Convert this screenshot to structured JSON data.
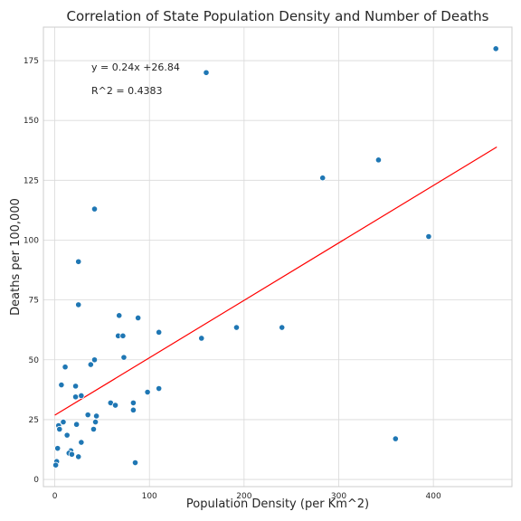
{
  "chart_data": {
    "type": "scatter",
    "title": "Correlation of State Population Density and Number of Deaths",
    "xlabel": "Population Density (per Km^2)",
    "ylabel": "Deaths per 100,000",
    "xlim": [
      -12,
      483
    ],
    "ylim": [
      -3,
      189
    ],
    "xticks": [
      0,
      100,
      200,
      300,
      400
    ],
    "yticks": [
      0,
      25,
      50,
      75,
      100,
      125,
      150,
      175
    ],
    "grid": true,
    "annotations": [
      "y = 0.24x +26.84",
      "R^2 = 0.4383"
    ],
    "regression": {
      "slope": 0.24,
      "intercept": 26.84,
      "x_range": [
        0,
        467
      ]
    },
    "colors": {
      "points": "#1f77b4",
      "point_edge": "#ffffff",
      "regression_line": "#ff0000",
      "grid": "#d9d9d9",
      "frame": "#cccccc"
    },
    "points": [
      {
        "x": 466,
        "y": 180
      },
      {
        "x": 160,
        "y": 170
      },
      {
        "x": 342,
        "y": 133.5
      },
      {
        "x": 283,
        "y": 126
      },
      {
        "x": 42,
        "y": 113
      },
      {
        "x": 395,
        "y": 101.5
      },
      {
        "x": 25,
        "y": 91
      },
      {
        "x": 25,
        "y": 73
      },
      {
        "x": 68,
        "y": 68.5
      },
      {
        "x": 88,
        "y": 67.5
      },
      {
        "x": 192,
        "y": 63.5
      },
      {
        "x": 240,
        "y": 63.5
      },
      {
        "x": 110,
        "y": 61.5
      },
      {
        "x": 67,
        "y": 60
      },
      {
        "x": 72,
        "y": 60
      },
      {
        "x": 155,
        "y": 59
      },
      {
        "x": 73,
        "y": 51
      },
      {
        "x": 42,
        "y": 50
      },
      {
        "x": 38,
        "y": 48
      },
      {
        "x": 11,
        "y": 47
      },
      {
        "x": 7,
        "y": 39.5
      },
      {
        "x": 22,
        "y": 39
      },
      {
        "x": 110,
        "y": 38
      },
      {
        "x": 98,
        "y": 36.5
      },
      {
        "x": 28,
        "y": 35
      },
      {
        "x": 22,
        "y": 34.5
      },
      {
        "x": 59,
        "y": 32
      },
      {
        "x": 83,
        "y": 32
      },
      {
        "x": 64,
        "y": 31
      },
      {
        "x": 83,
        "y": 29
      },
      {
        "x": 35,
        "y": 27
      },
      {
        "x": 44,
        "y": 26.5
      },
      {
        "x": 43,
        "y": 24
      },
      {
        "x": 9,
        "y": 24
      },
      {
        "x": 23,
        "y": 23
      },
      {
        "x": 4,
        "y": 22.5
      },
      {
        "x": 5,
        "y": 21
      },
      {
        "x": 41,
        "y": 21
      },
      {
        "x": 13,
        "y": 18.5
      },
      {
        "x": 360,
        "y": 17
      },
      {
        "x": 28,
        "y": 15.5
      },
      {
        "x": 3,
        "y": 13
      },
      {
        "x": 17,
        "y": 12
      },
      {
        "x": 15,
        "y": 11
      },
      {
        "x": 18,
        "y": 10.5
      },
      {
        "x": 25,
        "y": 9.5
      },
      {
        "x": 2,
        "y": 7.5
      },
      {
        "x": 85,
        "y": 7
      },
      {
        "x": 1,
        "y": 6
      }
    ]
  }
}
